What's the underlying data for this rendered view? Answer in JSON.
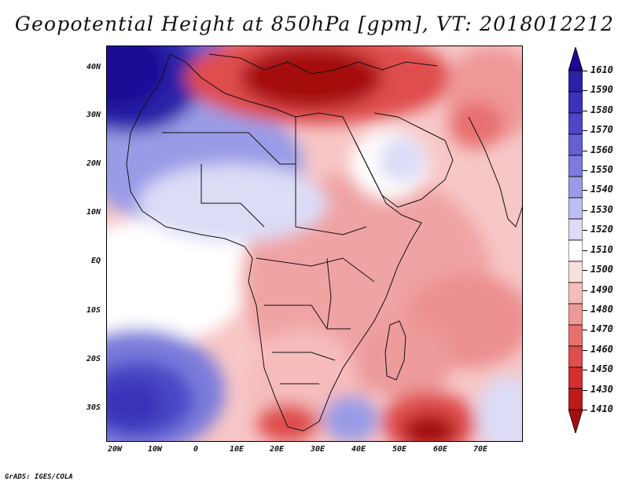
{
  "title": "Geopotential Height at 850hPa [gpm], VT: 2018012212",
  "footer": "GrADS: IGES/COLA",
  "axes": {
    "lat_labels": [
      "40N",
      "30N",
      "20N",
      "10N",
      "EQ",
      "10S",
      "20S",
      "30S"
    ],
    "lon_labels": [
      "20W",
      "10W",
      "0",
      "10E",
      "20E",
      "30E",
      "40E",
      "50E",
      "60E",
      "70E"
    ]
  },
  "colorbar": {
    "labels": [
      "1610",
      "1590",
      "1580",
      "1570",
      "1560",
      "1550",
      "1540",
      "1530",
      "1520",
      "1510",
      "1500",
      "1490",
      "1480",
      "1470",
      "1460",
      "1450",
      "1430",
      "1410"
    ],
    "colors": [
      "#1a0a96",
      "#2b21a8",
      "#3a32b9",
      "#4b47c6",
      "#6260d2",
      "#7c7cdc",
      "#9a9be6",
      "#bcbdf0",
      "#dcdcf7",
      "#ffffff",
      "#fbdede",
      "#f6bcbc",
      "#ef9898",
      "#e87070",
      "#df4d4d",
      "#d23030",
      "#bd1a1a",
      "#a50e0e"
    ]
  },
  "colors": {
    "frame": "#000000",
    "border": "#111111"
  }
}
